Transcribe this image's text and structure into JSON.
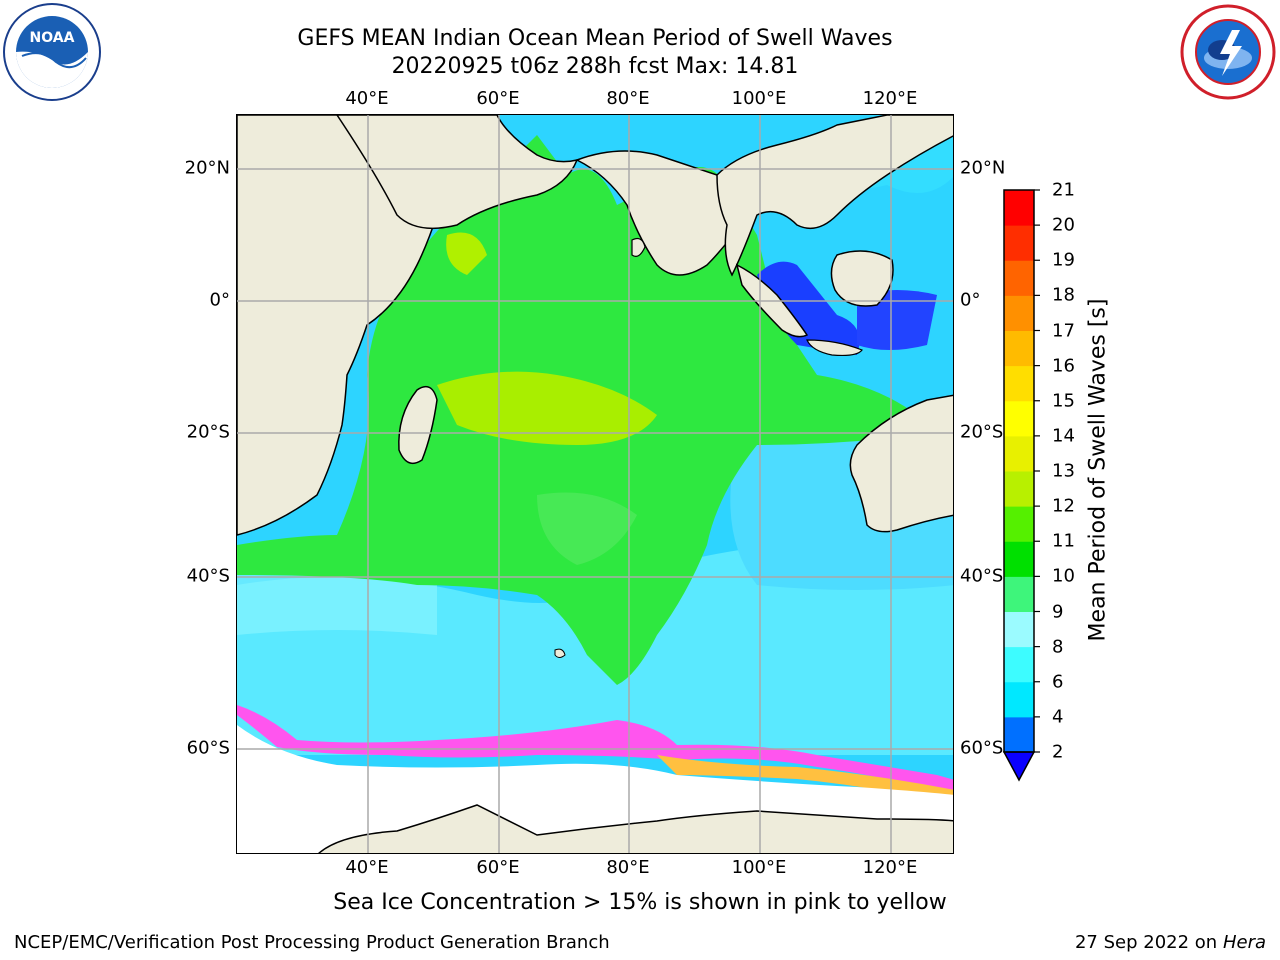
{
  "title_line1": "GEFS MEAN Indian Ocean Mean Period of Swell Waves",
  "title_line2": "20220925 t06z 288h fcst   Max: 14.81",
  "logos": {
    "left": "NOAA",
    "right": "NATIONAL WEATHER SERVICE"
  },
  "map": {
    "lon_ticks": [
      "40°E",
      "60°E",
      "80°E",
      "100°E",
      "120°E"
    ],
    "lat_ticks": [
      "20°N",
      "0°",
      "20°S",
      "40°S",
      "60°S"
    ],
    "land_color": "#eeecdb",
    "ice_note_colors": [
      "#ff44ff",
      "#ffb000",
      "#ffff66"
    ]
  },
  "colorbar": {
    "title": "Mean Period of Swell Waves [s]",
    "labels": [
      "2",
      "4",
      "6",
      "8",
      "9",
      "10",
      "11",
      "12",
      "13",
      "14",
      "15",
      "16",
      "17",
      "18",
      "19",
      "20",
      "21"
    ],
    "colors": [
      "#0a00ff",
      "#0070ff",
      "#00e8ff",
      "#3dfcff",
      "#9bfbff",
      "#3ef57b",
      "#00e000",
      "#55f000",
      "#b8f000",
      "#e8f000",
      "#ffff00",
      "#ffde00",
      "#ffbb00",
      "#ff9000",
      "#ff6400",
      "#ff2e00",
      "#ff0000"
    ]
  },
  "footnote": "Sea Ice Concentration > 15% is shown in pink to yellow",
  "credit_left": "NCEP/EMC/Verification Post Processing Product Generation Branch",
  "credit_right_prefix": "27 Sep 2022 on",
  "credit_right_system": "Hera"
}
